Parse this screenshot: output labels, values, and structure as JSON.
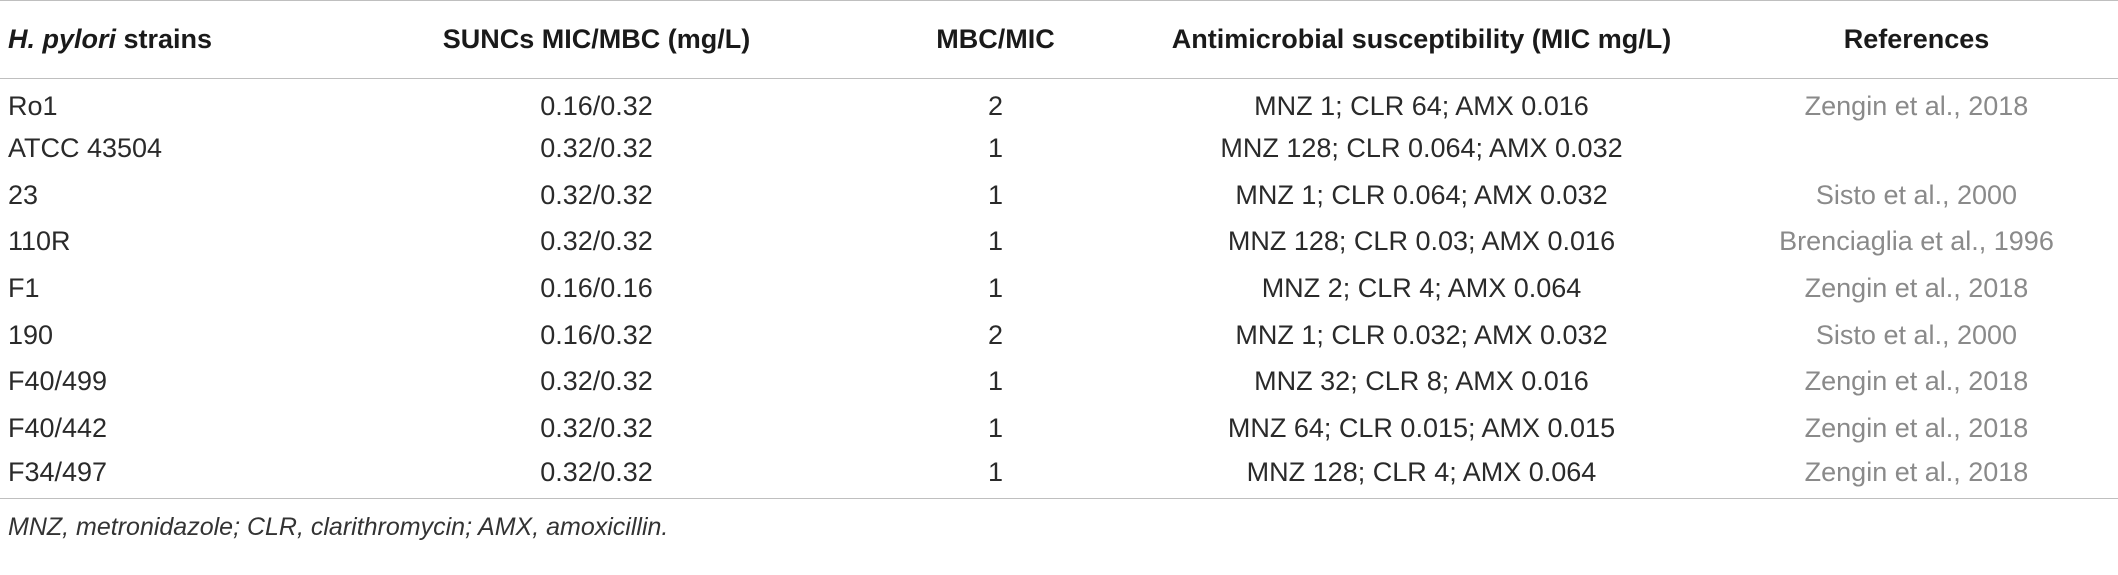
{
  "table": {
    "headers": {
      "strain_italic": "H. pylori",
      "strain_rest": " strains",
      "suncs": "SUNCs MIC/MBC (mg/L)",
      "ratio": "MBC/MIC",
      "susceptibility": "Antimicrobial susceptibility (MIC mg/L)",
      "references": "References"
    },
    "rows": [
      {
        "strain": "Ro1",
        "suncs": "0.16/0.32",
        "ratio": "2",
        "susceptibility": "MNZ 1; CLR 64; AMX 0.016",
        "reference": "Zengin et al., 2018"
      },
      {
        "strain": "ATCC 43504",
        "suncs": "0.32/0.32",
        "ratio": "1",
        "susceptibility": "MNZ 128; CLR 0.064; AMX 0.032",
        "reference": ""
      },
      {
        "strain": "23",
        "suncs": "0.32/0.32",
        "ratio": "1",
        "susceptibility": "MNZ 1; CLR 0.064; AMX 0.032",
        "reference": "Sisto et al., 2000"
      },
      {
        "strain": "110R",
        "suncs": "0.32/0.32",
        "ratio": "1",
        "susceptibility": "MNZ 128; CLR 0.03; AMX 0.016",
        "reference": "Brenciaglia et al., 1996"
      },
      {
        "strain": "F1",
        "suncs": "0.16/0.16",
        "ratio": "1",
        "susceptibility": "MNZ 2; CLR 4; AMX 0.064",
        "reference": "Zengin et al., 2018"
      },
      {
        "strain": "190",
        "suncs": "0.16/0.32",
        "ratio": "2",
        "susceptibility": "MNZ 1; CLR 0.032; AMX 0.032",
        "reference": "Sisto et al., 2000"
      },
      {
        "strain": "F40/499",
        "suncs": "0.32/0.32",
        "ratio": "1",
        "susceptibility": "MNZ 32; CLR 8; AMX 0.016",
        "reference": "Zengin et al., 2018"
      },
      {
        "strain": "F40/442",
        "suncs": "0.32/0.32",
        "ratio": "1",
        "susceptibility": "MNZ 64; CLR 0.015; AMX 0.015",
        "reference": "Zengin et al., 2018"
      },
      {
        "strain": "F34/497",
        "suncs": "0.32/0.32",
        "ratio": "1",
        "susceptibility": "MNZ 128; CLR 4; AMX 0.064",
        "reference": "Zengin et al., 2018"
      }
    ]
  },
  "footnote": "MNZ, metronidazole; CLR, clarithromycin; AMX, amoxicillin.",
  "colors": {
    "rule": "#bfbfbf",
    "reference_text": "#8a8a8a",
    "body_text": "#2a2a2a"
  }
}
